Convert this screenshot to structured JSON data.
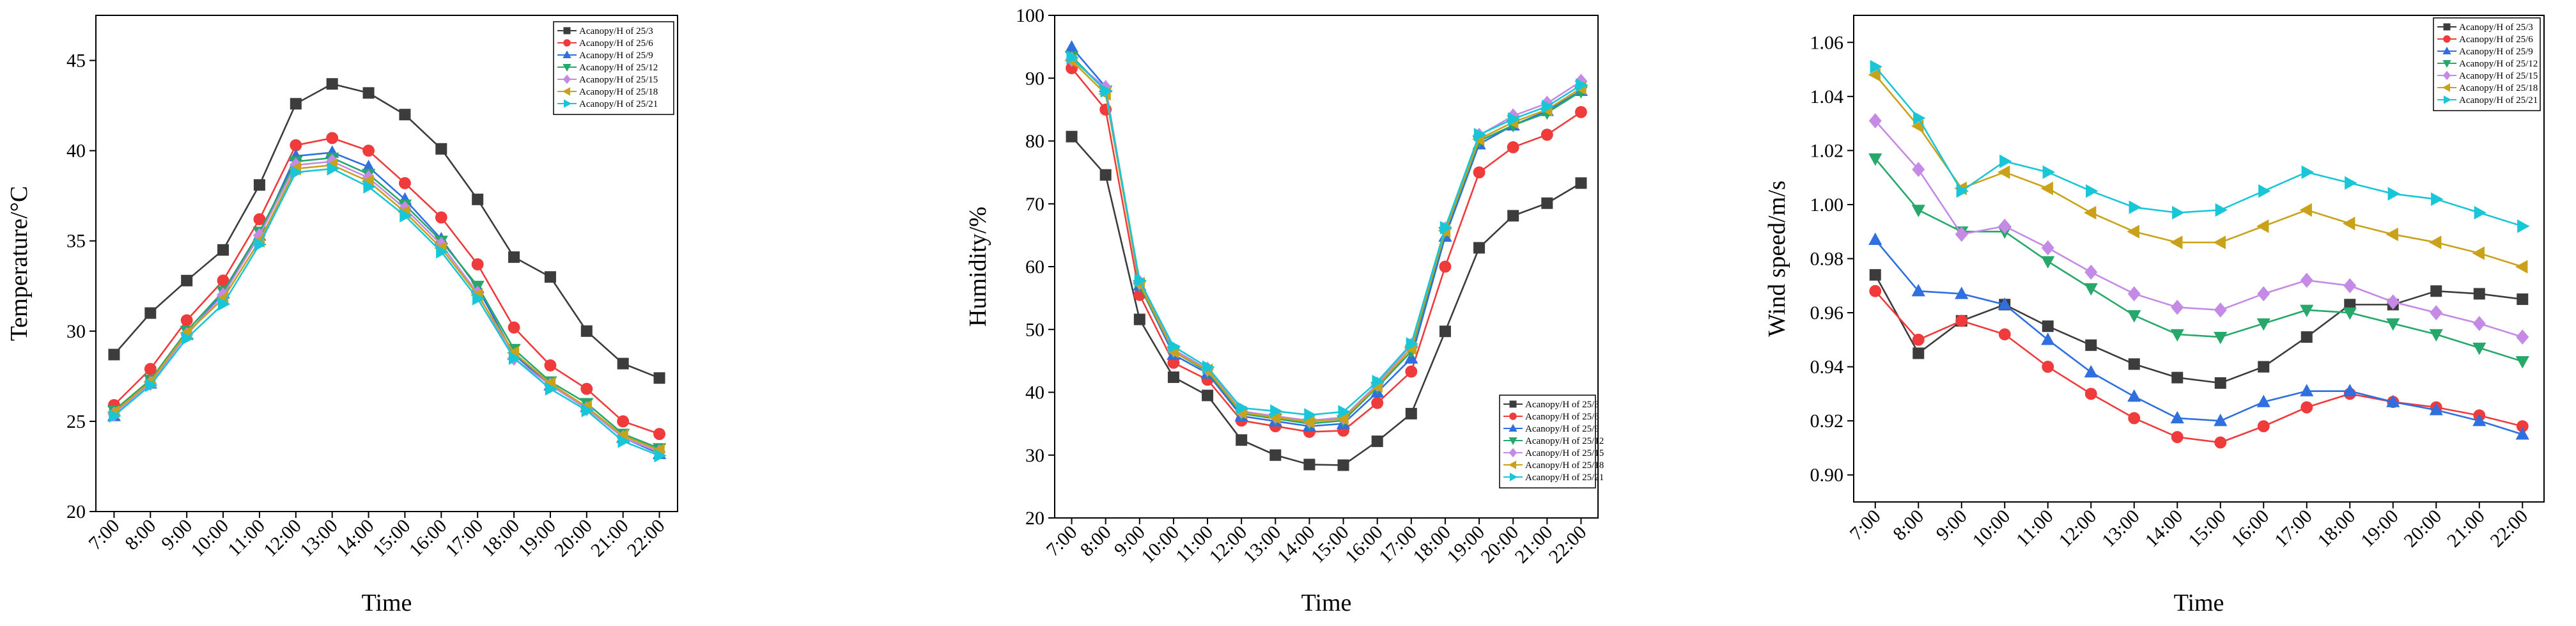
{
  "series_styles": [
    {
      "marker": "square",
      "color": "#3c3c3c"
    },
    {
      "marker": "circle",
      "color": "#ef3b3b"
    },
    {
      "marker": "triangle",
      "color": "#2f6fe0"
    },
    {
      "marker": "invtri",
      "color": "#26a86a"
    },
    {
      "marker": "diamond",
      "color": "#c58ae6"
    },
    {
      "marker": "left",
      "color": "#c9a21a"
    },
    {
      "marker": "right",
      "color": "#19c6d8"
    }
  ],
  "chart_data": [
    {
      "type": "line",
      "xlabel": "Time",
      "ylabel": "Temperature/°C",
      "ylim": [
        20,
        47.5
      ],
      "yticks": [
        20,
        25,
        30,
        35,
        40,
        45
      ],
      "ytick_labels": [
        "20",
        "25",
        "30",
        "35",
        "40",
        "45"
      ],
      "legend_position": "top-right",
      "categories": [
        "7:00",
        "8:00",
        "9:00",
        "10:00",
        "11:00",
        "12:00",
        "13:00",
        "14:00",
        "15:00",
        "16:00",
        "17:00",
        "18:00",
        "19:00",
        "20:00",
        "21:00",
        "22:00"
      ],
      "series": [
        {
          "name": "Acanopy/H of 25/3",
          "values": [
            28.7,
            31.0,
            32.8,
            34.5,
            38.1,
            42.6,
            43.7,
            43.2,
            42.0,
            40.1,
            37.3,
            34.1,
            33.0,
            30.0,
            28.2,
            27.4
          ]
        },
        {
          "name": "Acanopy/H of 25/6",
          "values": [
            25.9,
            27.9,
            30.6,
            32.8,
            36.2,
            40.3,
            40.7,
            40.0,
            38.2,
            36.3,
            33.7,
            30.2,
            28.1,
            26.8,
            25.0,
            24.3
          ]
        },
        {
          "name": "Acanopy/H of 25/9",
          "values": [
            25.3,
            27.1,
            29.8,
            32.1,
            35.3,
            39.7,
            39.9,
            39.1,
            37.3,
            35.1,
            32.4,
            28.7,
            27.0,
            25.8,
            24.1,
            23.2
          ]
        },
        {
          "name": "Acanopy/H of 25/12",
          "values": [
            25.6,
            27.3,
            30.0,
            32.2,
            35.5,
            39.4,
            39.6,
            38.7,
            37.0,
            35.0,
            32.5,
            29.0,
            27.2,
            26.0,
            24.3,
            23.5
          ]
        },
        {
          "name": "Acanopy/H of 25/15",
          "values": [
            25.4,
            27.1,
            29.8,
            32.0,
            35.3,
            39.2,
            39.4,
            38.5,
            36.8,
            34.8,
            32.1,
            28.5,
            27.0,
            25.7,
            24.1,
            23.3
          ]
        },
        {
          "name": "Acanopy/H of 25/18",
          "values": [
            25.5,
            27.2,
            29.9,
            31.8,
            35.0,
            39.0,
            39.2,
            38.3,
            36.6,
            34.6,
            32.0,
            28.8,
            27.1,
            25.8,
            24.2,
            23.4
          ]
        },
        {
          "name": "Acanopy/H of 25/21",
          "values": [
            25.3,
            27.0,
            29.6,
            31.5,
            34.8,
            38.8,
            39.0,
            38.0,
            36.4,
            34.4,
            31.8,
            28.5,
            26.8,
            25.6,
            23.9,
            23.1
          ]
        }
      ]
    },
    {
      "type": "line",
      "xlabel": "Time",
      "ylabel": "Humidity/%",
      "ylim": [
        20,
        100
      ],
      "yticks": [
        20,
        30,
        40,
        50,
        60,
        70,
        80,
        90,
        100
      ],
      "ytick_labels": [
        "20",
        "30",
        "40",
        "50",
        "60",
        "70",
        "80",
        "90",
        "100"
      ],
      "legend_position": "bottom-right",
      "categories": [
        "7:00",
        "8:00",
        "9:00",
        "10:00",
        "11:00",
        "12:00",
        "13:00",
        "14:00",
        "15:00",
        "16:00",
        "17:00",
        "18:00",
        "19:00",
        "20:00",
        "21:00",
        "22:00"
      ],
      "series": [
        {
          "name": "Acanopy/H of 25/3",
          "values": [
            80.7,
            74.6,
            51.6,
            42.4,
            39.5,
            32.4,
            30.0,
            28.5,
            28.4,
            32.2,
            36.6,
            49.7,
            63.0,
            68.1,
            70.1,
            73.3
          ]
        },
        {
          "name": "Acanopy/H of 25/6",
          "values": [
            91.6,
            85.0,
            55.5,
            44.7,
            42.0,
            35.5,
            34.6,
            33.7,
            33.9,
            38.3,
            43.3,
            60.0,
            75.0,
            79.0,
            81.0,
            84.6
          ]
        },
        {
          "name": "Acanopy/H of 25/9",
          "values": [
            94.9,
            88.6,
            57.0,
            46.0,
            43.0,
            36.2,
            35.4,
            34.6,
            35.0,
            40.0,
            45.4,
            64.8,
            79.5,
            82.5,
            84.8,
            88.0
          ]
        },
        {
          "name": "Acanopy/H of 25/12",
          "values": [
            93.5,
            88.0,
            57.0,
            46.5,
            43.3,
            36.6,
            35.8,
            35.0,
            35.5,
            40.8,
            46.5,
            65.5,
            80.0,
            82.5,
            84.5,
            87.9
          ]
        },
        {
          "name": "Acanopy/H of 25/15",
          "values": [
            93.0,
            88.5,
            57.5,
            46.8,
            43.7,
            37.0,
            36.2,
            35.5,
            36.0,
            41.3,
            47.5,
            66.0,
            80.9,
            84.0,
            86.0,
            89.5
          ]
        },
        {
          "name": "Acanopy/H of 25/18",
          "values": [
            92.8,
            87.5,
            57.3,
            46.5,
            43.5,
            36.8,
            36.0,
            35.3,
            35.8,
            41.0,
            47.0,
            65.7,
            80.3,
            83.0,
            85.0,
            88.4
          ]
        },
        {
          "name": "Acanopy/H of 25/21",
          "values": [
            93.3,
            88.0,
            57.8,
            47.3,
            44.0,
            37.5,
            37.0,
            36.4,
            36.9,
            41.7,
            47.7,
            66.2,
            81.0,
            83.5,
            85.5,
            88.9
          ]
        }
      ]
    },
    {
      "type": "line",
      "xlabel": "Time",
      "ylabel": "Wind speed/m/s",
      "ylim": [
        0.89,
        1.07
      ],
      "yticks": [
        0.9,
        0.92,
        0.94,
        0.96,
        0.98,
        1.0,
        1.02,
        1.04,
        1.06
      ],
      "ytick_labels": [
        "0.90",
        "0.92",
        "0.94",
        "0.96",
        "0.98",
        "1.00",
        "1.02",
        "1.04",
        "1.06"
      ],
      "legend_position": "top-right",
      "categories": [
        "7:00",
        "8:00",
        "9:00",
        "10:00",
        "11:00",
        "12:00",
        "13:00",
        "14:00",
        "15:00",
        "16:00",
        "17:00",
        "18:00",
        "19:00",
        "20:00",
        "21:00",
        "22:00"
      ],
      "series": [
        {
          "name": "Acanopy/H of 25/3",
          "values": [
            0.974,
            0.945,
            0.957,
            0.963,
            0.955,
            0.948,
            0.941,
            0.936,
            0.934,
            0.94,
            0.951,
            0.963,
            0.963,
            0.968,
            0.967,
            0.965
          ]
        },
        {
          "name": "Acanopy/H of 25/6",
          "values": [
            0.968,
            0.95,
            0.957,
            0.952,
            0.94,
            0.93,
            0.921,
            0.914,
            0.912,
            0.918,
            0.925,
            0.93,
            0.927,
            0.925,
            0.922,
            0.918
          ]
        },
        {
          "name": "Acanopy/H of 25/9",
          "values": [
            0.987,
            0.968,
            0.967,
            0.963,
            0.95,
            0.938,
            0.929,
            0.921,
            0.92,
            0.927,
            0.931,
            0.931,
            0.927,
            0.924,
            0.92,
            0.915
          ]
        },
        {
          "name": "Acanopy/H of 25/12",
          "values": [
            1.017,
            0.998,
            0.99,
            0.99,
            0.979,
            0.969,
            0.959,
            0.952,
            0.951,
            0.956,
            0.961,
            0.96,
            0.956,
            0.952,
            0.947,
            0.942
          ]
        },
        {
          "name": "Acanopy/H of 25/15",
          "values": [
            1.031,
            1.013,
            0.989,
            0.992,
            0.984,
            0.975,
            0.967,
            0.962,
            0.961,
            0.967,
            0.972,
            0.97,
            0.964,
            0.96,
            0.956,
            0.951
          ]
        },
        {
          "name": "Acanopy/H of 25/18",
          "values": [
            1.048,
            1.029,
            1.006,
            1.012,
            1.006,
            0.997,
            0.99,
            0.986,
            0.986,
            0.992,
            0.998,
            0.993,
            0.989,
            0.986,
            0.982,
            0.977
          ]
        },
        {
          "name": "Acanopy/H of 25/21",
          "values": [
            1.051,
            1.032,
            1.005,
            1.016,
            1.012,
            1.005,
            0.999,
            0.997,
            0.998,
            1.005,
            1.012,
            1.008,
            1.004,
            1.002,
            0.997,
            0.992
          ]
        }
      ]
    }
  ]
}
